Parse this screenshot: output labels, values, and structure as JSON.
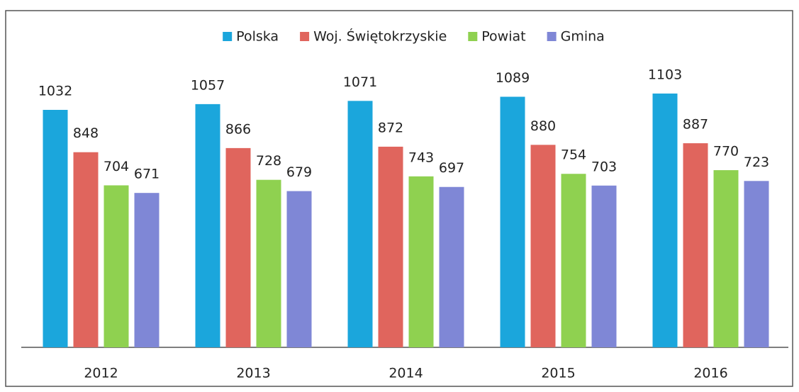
{
  "chart_data": {
    "type": "bar",
    "categories": [
      "2012",
      "2013",
      "2014",
      "2015",
      "2016"
    ],
    "series": [
      {
        "name": "Polska",
        "color": "#1ba6dc",
        "values": [
          1032,
          1057,
          1071,
          1089,
          1103
        ]
      },
      {
        "name": "Woj. Świętokrzyskie",
        "color": "#e0655d",
        "values": [
          848,
          866,
          872,
          880,
          887
        ]
      },
      {
        "name": "Powiat",
        "color": "#8fd150",
        "values": [
          704,
          728,
          743,
          754,
          770
        ]
      },
      {
        "name": "Gmina",
        "color": "#7f87d6",
        "values": [
          671,
          679,
          697,
          703,
          723
        ]
      }
    ],
    "ylim": [
      0,
      1300
    ],
    "legend": "top"
  }
}
